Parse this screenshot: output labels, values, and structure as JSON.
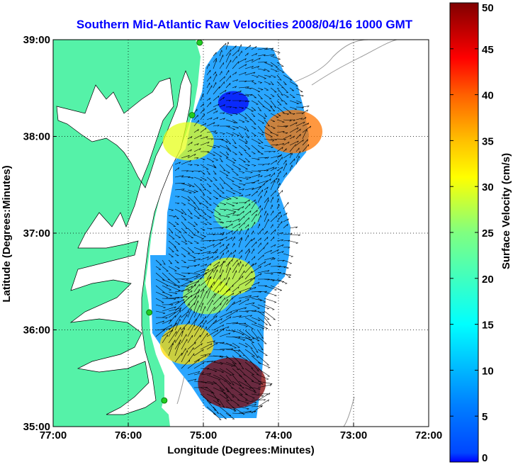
{
  "chart_data": {
    "type": "heatmap",
    "title": "Southern Mid-Atlantic Raw Velocities 2008/04/16 1000 GMT",
    "xlabel": "Longitude (Degrees:Minutes)",
    "ylabel": "Latitude (Degrees:Minutes)",
    "x_ticks": [
      "77:00",
      "76:00",
      "75:00",
      "74:00",
      "73:00",
      "72:00"
    ],
    "y_ticks": [
      "35:00",
      "36:00",
      "37:00",
      "38:00",
      "39:00"
    ],
    "xlim": [
      -77,
      -72
    ],
    "ylim": [
      35,
      39
    ],
    "grid": true,
    "colorbar": {
      "label": "Surface Velocity (cm/s)",
      "range": [
        0,
        50
      ],
      "ticks": [
        "0",
        "5",
        "10",
        "15",
        "20",
        "25",
        "30",
        "35",
        "40",
        "45",
        "50"
      ],
      "colormap": "jet"
    },
    "velocity_hotspots": [
      {
        "lon": -75.22,
        "lat": 35.85,
        "speed": 33
      },
      {
        "lon": -74.62,
        "lat": 35.45,
        "speed": 50
      },
      {
        "lon": -74.95,
        "lat": 36.35,
        "speed": 27
      },
      {
        "lon": -74.65,
        "lat": 36.55,
        "speed": 30
      },
      {
        "lon": -74.55,
        "lat": 37.2,
        "speed": 24
      },
      {
        "lon": -75.2,
        "lat": 37.95,
        "speed": 30
      },
      {
        "lon": -73.8,
        "lat": 38.05,
        "speed": 38
      },
      {
        "lon": -74.6,
        "lat": 38.35,
        "speed": 6
      }
    ],
    "stations": [
      {
        "lon": -75.05,
        "lat": 38.97
      },
      {
        "lon": -75.15,
        "lat": 38.22
      },
      {
        "lon": -75.72,
        "lat": 36.18
      },
      {
        "lon": -75.52,
        "lat": 35.27
      }
    ]
  },
  "colors": {
    "land": "#55f2a8",
    "title": "#0000ff",
    "station": "#22cc22"
  }
}
